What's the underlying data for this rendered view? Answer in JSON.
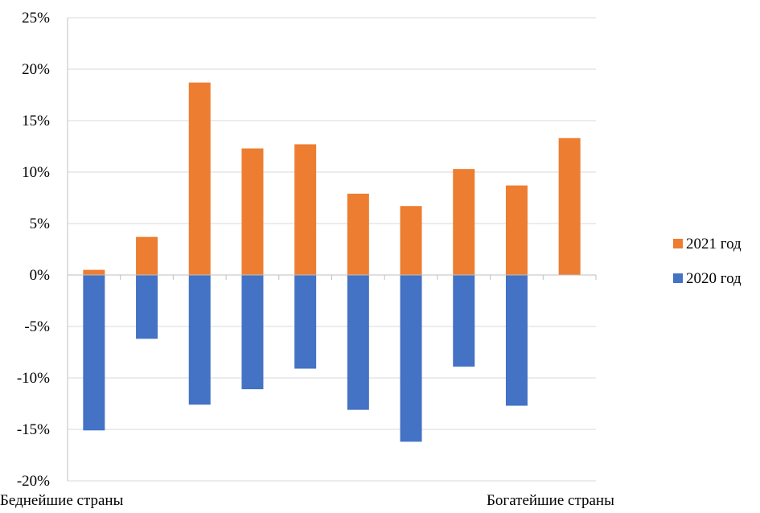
{
  "chart_data": {
    "type": "bar",
    "stacked": true,
    "y_ticks": [
      "25%",
      "20%",
      "15%",
      "10%",
      "5%",
      "0%",
      "-5%",
      "-10%",
      "-15%",
      "-20%"
    ],
    "ylim": [
      -20,
      25
    ],
    "y_unit": "%",
    "grid": true,
    "legend_position": "right",
    "categories_count": 10,
    "x_start_label": "Беднейшие страны",
    "x_end_label": "Богатейшие страны",
    "series": [
      {
        "name": "2021 год",
        "color": "#ED7D31",
        "values": [
          0.5,
          3.7,
          18.7,
          12.3,
          12.7,
          7.9,
          6.7,
          10.3,
          8.7,
          13.3
        ]
      },
      {
        "name": "2020 год",
        "color": "#4472C4",
        "values": [
          -15.1,
          -6.2,
          -12.6,
          -11.1,
          -9.1,
          -13.1,
          -16.2,
          -8.9,
          -12.7,
          0
        ]
      }
    ]
  }
}
